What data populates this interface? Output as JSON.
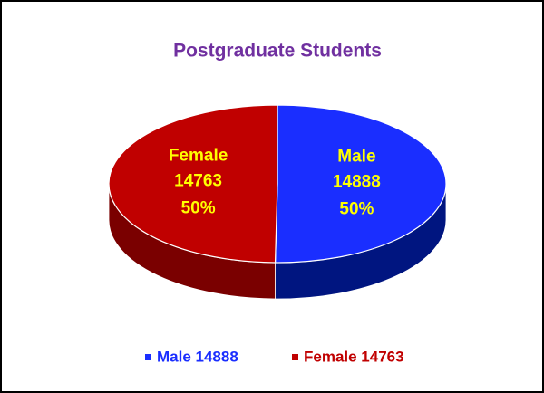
{
  "chart_data": {
    "type": "pie3d",
    "title": "Postgraduate Students",
    "categories": [
      "Male",
      "Female"
    ],
    "values": [
      14888,
      14763
    ],
    "percent_labels": [
      "50%",
      "50%"
    ],
    "colors": [
      "#1a2eff",
      "#c00000"
    ],
    "side_colors": [
      "#001580",
      "#7a0000"
    ],
    "legend_labels": [
      "Male 14888",
      "Female 14763"
    ],
    "legend": "bottom"
  }
}
